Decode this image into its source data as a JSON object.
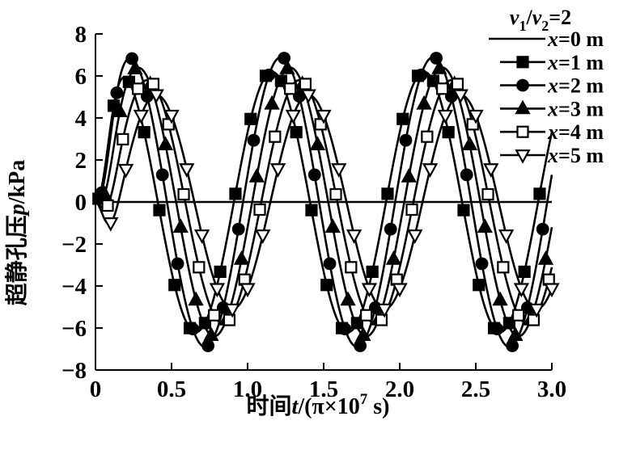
{
  "chart_data": {
    "type": "line",
    "background_color": "#ffffff",
    "line_color": "#000000",
    "x_axis": {
      "label": "时间t/(π×10⁷ s)",
      "label_parts": [
        {
          "t": "时间",
          "kind": "normal"
        },
        {
          "t": "t",
          "kind": "italic"
        },
        {
          "t": "/(π×10",
          "kind": "normal"
        },
        {
          "t": "7",
          "kind": "sup"
        },
        {
          "t": " s)",
          "kind": "normal"
        }
      ],
      "min": 0,
      "max": 3.0,
      "ticks": [
        0,
        0.5,
        1.0,
        1.5,
        2.0,
        2.5,
        3.0
      ],
      "tick_labels": [
        "0",
        "0.5",
        "1.0",
        "1.5",
        "2.0",
        "2.5",
        "3.0"
      ]
    },
    "y_axis": {
      "label": "超静孔压p/kPa",
      "label_parts": [
        {
          "t": "超静孔压",
          "kind": "normal"
        },
        {
          "t": "p",
          "kind": "italic"
        },
        {
          "t": "/kPa",
          "kind": "normal"
        }
      ],
      "min": -8,
      "max": 8,
      "ticks": [
        8,
        6,
        4,
        2,
        0,
        -2,
        -4,
        -6,
        -8
      ],
      "tick_labels": [
        "8",
        "6",
        "4",
        "2",
        "0",
        "−2",
        "−4",
        "−6",
        "−8"
      ]
    },
    "legend": {
      "position": "top-right",
      "title": "v₁/v₂=2",
      "title_parts": [
        {
          "t": "v",
          "kind": "italic"
        },
        {
          "t": "1",
          "kind": "sub"
        },
        {
          "t": "/",
          "kind": "normal"
        },
        {
          "t": "v",
          "kind": "italic"
        },
        {
          "t": "2",
          "kind": "sub"
        },
        {
          "t": "=2",
          "kind": "normal"
        }
      ]
    },
    "model": {
      "waveform": "sine",
      "period": 1.0,
      "formula": "p(t) = A·sin(2π(t−d)/T)·(1−exp(−(t/0.1)²))",
      "sample_step": 0.01,
      "marker_step": 0.1
    },
    "series": [
      {
        "label": "x=0 m",
        "label_parts": [
          {
            "t": "x",
            "kind": "italic"
          },
          {
            "t": "=0 m",
            "kind": "normal"
          }
        ],
        "x_m": 0,
        "marker": "none",
        "fill": "none",
        "amplitude": 0.0,
        "phase_delay": 0.0,
        "marker_offset": 0.0,
        "note": "flat line at p = 0 kPa"
      },
      {
        "label": "x=1 m",
        "label_parts": [
          {
            "t": "x",
            "kind": "italic"
          },
          {
            "t": "=1 m",
            "kind": "normal"
          }
        ],
        "x_m": 1,
        "marker": "square",
        "fill": "filled",
        "amplitude": 6.2,
        "phase_delay": -0.09,
        "marker_offset": 0.02
      },
      {
        "label": "x=2 m",
        "label_parts": [
          {
            "t": "x",
            "kind": "italic"
          },
          {
            "t": "=2 m",
            "kind": "normal"
          }
        ],
        "x_m": 2,
        "marker": "circle",
        "fill": "filled",
        "amplitude": 6.9,
        "phase_delay": -0.03,
        "marker_offset": 0.04
      },
      {
        "label": "x=3 m",
        "label_parts": [
          {
            "t": "x",
            "kind": "italic"
          },
          {
            "t": "=3 m",
            "kind": "normal"
          }
        ],
        "x_m": 3,
        "marker": "triangle-up",
        "fill": "filled",
        "amplitude": 6.4,
        "phase_delay": 0.03,
        "marker_offset": 0.06
      },
      {
        "label": "x=4 m",
        "label_parts": [
          {
            "t": "x",
            "kind": "italic"
          },
          {
            "t": "=4 m",
            "kind": "normal"
          }
        ],
        "x_m": 4,
        "marker": "square",
        "fill": "open",
        "amplitude": 5.8,
        "phase_delay": 0.09,
        "marker_offset": 0.08
      },
      {
        "label": "x=5 m",
        "label_parts": [
          {
            "t": "x",
            "kind": "italic"
          },
          {
            "t": "=5 m",
            "kind": "normal"
          }
        ],
        "x_m": 5,
        "marker": "triangle-down",
        "fill": "open",
        "amplitude": 5.1,
        "phase_delay": 0.15,
        "marker_offset": 0.1
      }
    ]
  }
}
